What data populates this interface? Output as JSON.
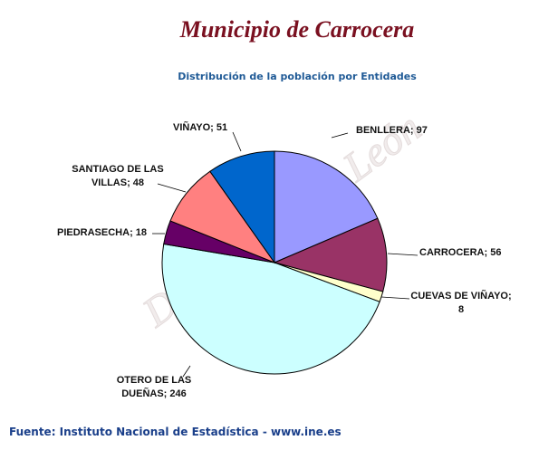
{
  "header": {
    "title": "Municipio de Carrocera",
    "subtitle": "Distribución de la población por Entidades"
  },
  "watermark": "Diputación de León",
  "footer": {
    "source": "Fuente: Instituto Nacional de Estadística - www.ine.es"
  },
  "chart_data": {
    "type": "pie",
    "title": "Distribución de la población por Entidades",
    "slices": [
      {
        "name": "BENLLERA",
        "value": 97,
        "color": "#9999ff",
        "label_lines": [
          "BENLLERA; 97"
        ]
      },
      {
        "name": "CARROCERA",
        "value": 56,
        "color": "#993366",
        "label_lines": [
          "CARROCERA; 56"
        ]
      },
      {
        "name": "CUEVAS DE VIÑAYO",
        "value": 8,
        "color": "#ffffcc",
        "label_lines": [
          "CUEVAS DE VIÑAYO;",
          "8"
        ]
      },
      {
        "name": "OTERO DE LAS DUEÑAS",
        "value": 246,
        "color": "#ccffff",
        "label_lines": [
          "OTERO DE LAS",
          "DUEÑAS; 246"
        ]
      },
      {
        "name": "PIEDRASECHA",
        "value": 18,
        "color": "#660066",
        "label_lines": [
          "PIEDRASECHA; 18"
        ]
      },
      {
        "name": "SANTIAGO DE LAS VILLAS",
        "value": 48,
        "color": "#ff8080",
        "label_lines": [
          "SANTIAGO DE LAS",
          "VILLAS; 48"
        ]
      },
      {
        "name": "VIÑAYO",
        "value": 51,
        "color": "#0066cc",
        "label_lines": [
          "VIÑAYO; 51"
        ]
      }
    ]
  }
}
